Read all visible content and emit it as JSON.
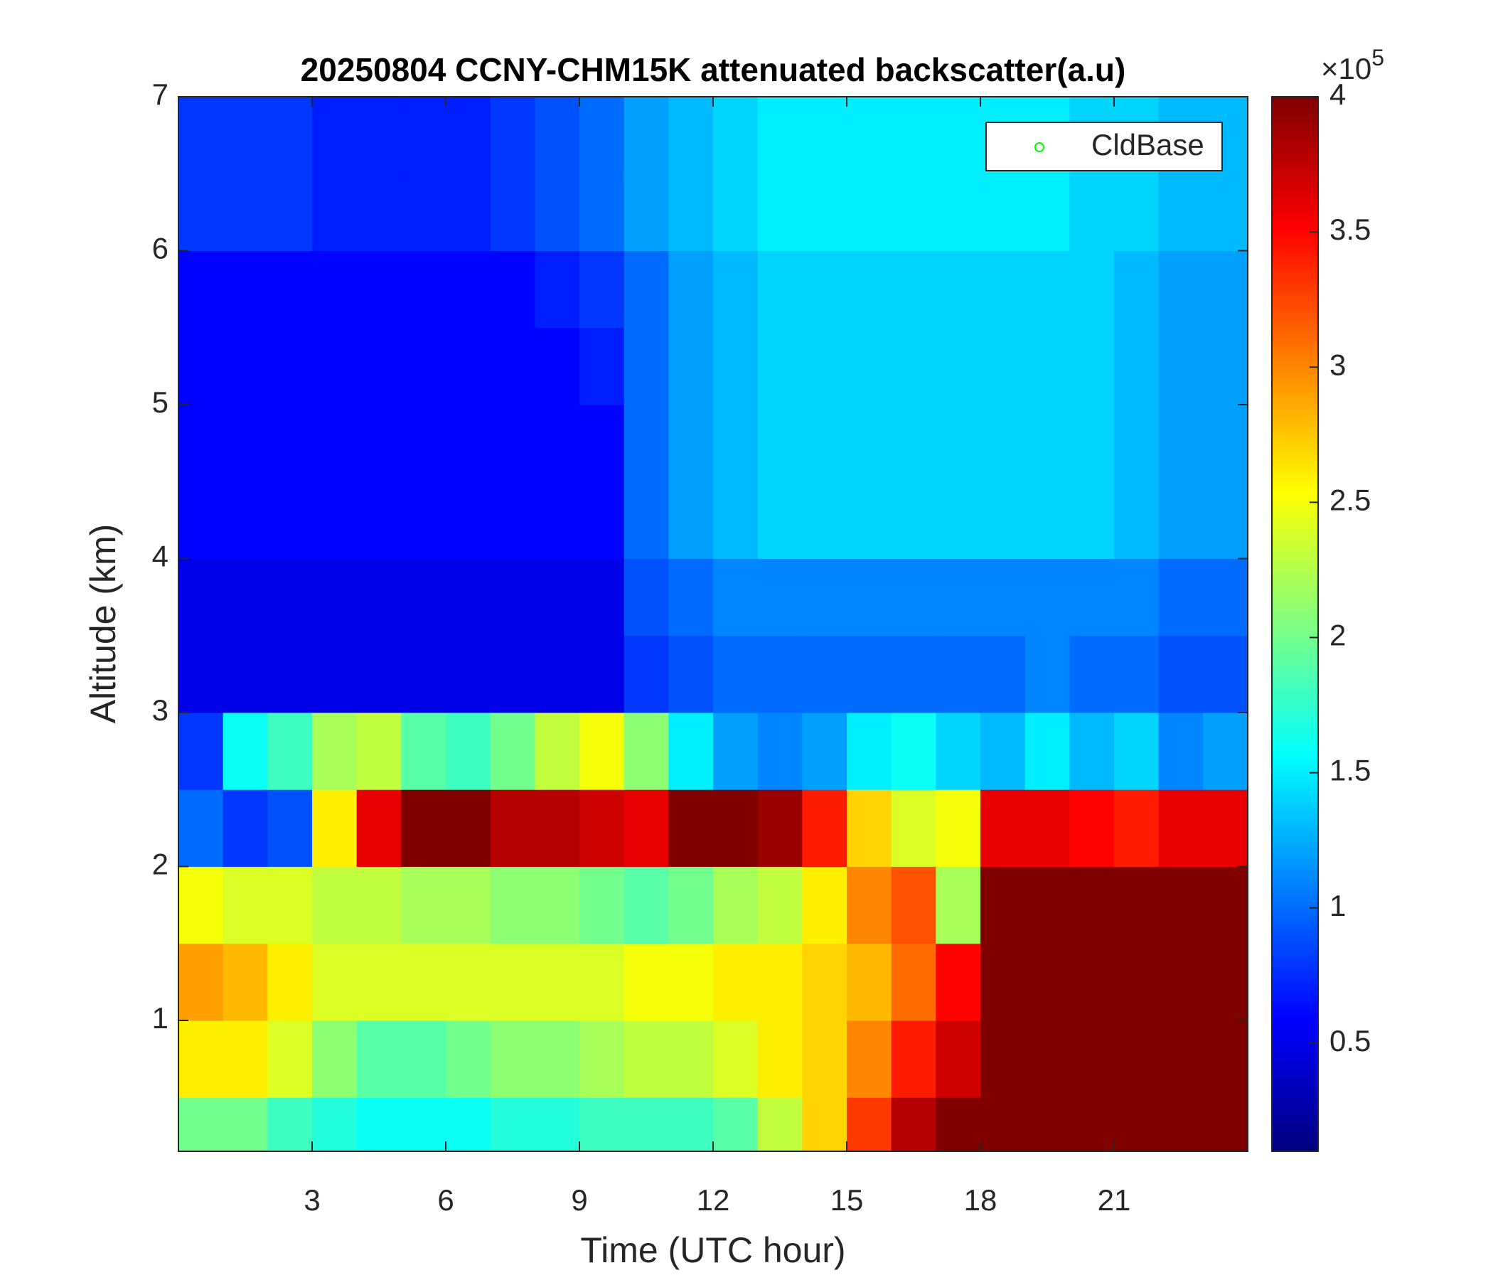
{
  "chart_data": {
    "type": "heatmap",
    "title": "20250804 CCNY-CHM15K attenuated backscatter(a.u)",
    "xlabel": "Time (UTC hour)",
    "ylabel": "Altitude (km)",
    "xlim": [
      0,
      24
    ],
    "ylim": [
      0.15,
      7
    ],
    "xticks": [
      3,
      6,
      9,
      12,
      15,
      18,
      21
    ],
    "yticks": [
      1,
      2,
      3,
      4,
      5,
      6,
      7
    ],
    "x_bins": [
      0,
      1,
      2,
      3,
      4,
      5,
      6,
      7,
      8,
      9,
      10,
      11,
      12,
      13,
      14,
      15,
      16,
      17,
      18,
      19,
      20,
      21,
      22,
      23,
      24
    ],
    "y_bins": [
      0.15,
      0.5,
      1.0,
      1.5,
      2.0,
      2.5,
      3.0,
      3.5,
      4.0,
      4.5,
      5.0,
      5.5,
      6.0,
      6.5,
      7.0
    ],
    "z": [
      [
        2.0,
        2.0,
        1.8,
        1.7,
        1.6,
        1.6,
        1.6,
        1.7,
        1.7,
        1.8,
        1.8,
        1.8,
        1.9,
        2.3,
        2.7,
        3.3,
        3.8,
        4,
        4,
        4,
        4,
        4,
        4,
        4
      ],
      [
        2.6,
        2.6,
        2.4,
        2.1,
        1.9,
        1.9,
        2.0,
        2.1,
        2.1,
        2.2,
        2.3,
        2.3,
        2.4,
        2.6,
        2.7,
        3.0,
        3.4,
        3.7,
        4,
        4,
        4,
        4,
        4,
        4
      ],
      [
        2.9,
        2.8,
        2.6,
        2.4,
        2.4,
        2.4,
        2.4,
        2.4,
        2.4,
        2.4,
        2.5,
        2.5,
        2.6,
        2.6,
        2.7,
        2.8,
        3.1,
        3.5,
        4,
        4,
        4,
        4,
        4,
        4
      ],
      [
        2.5,
        2.4,
        2.4,
        2.3,
        2.3,
        2.2,
        2.2,
        2.1,
        2.1,
        2.0,
        1.9,
        2.0,
        2.2,
        2.3,
        2.6,
        3.0,
        3.2,
        2.2,
        4,
        4,
        4,
        4,
        4,
        4
      ],
      [
        1.0,
        0.8,
        0.9,
        2.6,
        3.6,
        4,
        4,
        3.8,
        3.8,
        3.7,
        3.6,
        4,
        4,
        3.9,
        3.4,
        2.7,
        2.4,
        2.5,
        3.6,
        3.6,
        3.5,
        3.4,
        3.6,
        3.6
      ],
      [
        0.8,
        1.6,
        1.8,
        2.2,
        2.3,
        1.9,
        1.8,
        2.0,
        2.3,
        2.5,
        2.1,
        1.5,
        1.2,
        1.1,
        1.2,
        1.5,
        1.6,
        1.4,
        1.3,
        1.5,
        1.3,
        1.4,
        1.1,
        1.2
      ],
      [
        0.5,
        0.5,
        0.5,
        0.5,
        0.5,
        0.5,
        0.5,
        0.5,
        0.5,
        0.5,
        0.8,
        0.9,
        1.0,
        1.0,
        1.0,
        1.0,
        1.0,
        1.0,
        1.0,
        1.1,
        1.0,
        1.0,
        0.9,
        0.9
      ],
      [
        0.5,
        0.5,
        0.5,
        0.5,
        0.5,
        0.5,
        0.5,
        0.5,
        0.5,
        0.5,
        0.9,
        1.0,
        1.1,
        1.1,
        1.1,
        1.1,
        1.1,
        1.1,
        1.1,
        1.1,
        1.1,
        1.1,
        1.0,
        1.0
      ],
      [
        0.6,
        0.6,
        0.6,
        0.6,
        0.6,
        0.6,
        0.6,
        0.6,
        0.6,
        0.6,
        1.0,
        1.2,
        1.3,
        1.4,
        1.4,
        1.4,
        1.4,
        1.4,
        1.4,
        1.4,
        1.4,
        1.3,
        1.2,
        1.2
      ],
      [
        0.6,
        0.6,
        0.6,
        0.6,
        0.6,
        0.6,
        0.6,
        0.6,
        0.6,
        0.6,
        1.0,
        1.2,
        1.3,
        1.4,
        1.4,
        1.4,
        1.4,
        1.4,
        1.4,
        1.4,
        1.4,
        1.3,
        1.2,
        1.2
      ],
      [
        0.6,
        0.6,
        0.6,
        0.6,
        0.6,
        0.6,
        0.6,
        0.6,
        0.6,
        0.7,
        1.0,
        1.2,
        1.3,
        1.4,
        1.4,
        1.4,
        1.4,
        1.4,
        1.4,
        1.4,
        1.4,
        1.3,
        1.2,
        1.2
      ],
      [
        0.6,
        0.6,
        0.6,
        0.6,
        0.6,
        0.6,
        0.6,
        0.6,
        0.7,
        0.8,
        1.0,
        1.2,
        1.3,
        1.4,
        1.4,
        1.4,
        1.4,
        1.4,
        1.4,
        1.4,
        1.4,
        1.3,
        1.2,
        1.2
      ],
      [
        0.8,
        0.8,
        0.8,
        0.7,
        0.7,
        0.7,
        0.7,
        0.8,
        0.9,
        1.0,
        1.2,
        1.3,
        1.4,
        1.5,
        1.5,
        1.5,
        1.5,
        1.5,
        1.5,
        1.5,
        1.4,
        1.4,
        1.3,
        1.3
      ],
      [
        0.8,
        0.8,
        0.8,
        0.7,
        0.7,
        0.7,
        0.7,
        0.8,
        0.9,
        1.0,
        1.2,
        1.3,
        1.4,
        1.5,
        1.5,
        1.5,
        1.5,
        1.5,
        1.5,
        1.5,
        1.4,
        1.4,
        1.3,
        1.3
      ]
    ],
    "colormap": "jet",
    "zlim": [
      0.1,
      4
    ],
    "zticks": [
      0.5,
      1,
      1.5,
      2,
      2.5,
      3,
      3.5,
      4
    ],
    "colorbar_multiplier": {
      "base": "×10",
      "exponent": "5"
    },
    "legend": {
      "position": "northeast",
      "entries": [
        {
          "name": "CldBase",
          "color": "#00ff00",
          "marker": "o"
        }
      ]
    }
  }
}
